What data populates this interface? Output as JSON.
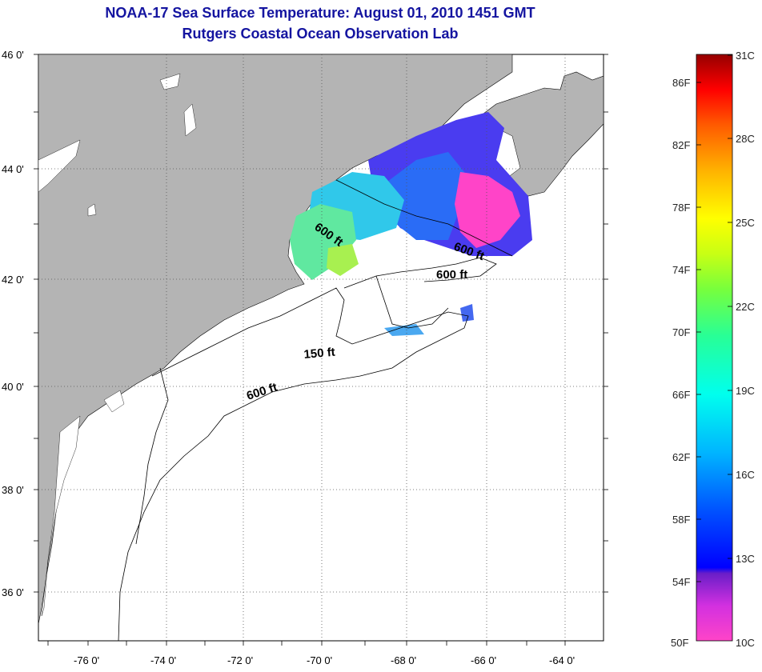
{
  "title": "NOAA-17 Sea Surface Temperature:  August 01, 2010 1451 GMT",
  "subtitle": "Rutgers Coastal Ocean Observation Lab",
  "axes": {
    "lon_ticks": [
      "-76 0'",
      "-74 0'",
      "-72 0'",
      "-70 0'",
      "-68 0'",
      "-66 0'",
      "-64 0'"
    ],
    "lat_ticks": [
      "46 0'",
      "44 0'",
      "42 0'",
      "40 0'",
      "38 0'",
      "36 0'"
    ]
  },
  "contours": [
    {
      "label": "600 ft"
    },
    {
      "label": "600 ft"
    },
    {
      "label": "600 ft"
    },
    {
      "label": "150 ft"
    },
    {
      "label": "600 ft"
    }
  ],
  "colorbar": {
    "fahrenheit": [
      "86F",
      "82F",
      "78F",
      "74F",
      "70F",
      "66F",
      "62F",
      "58F",
      "54F",
      "50F"
    ],
    "celsius": [
      "31C",
      "28C",
      "25C",
      "22C",
      "19C",
      "16C",
      "13C",
      "10C"
    ]
  },
  "colors": {
    "land": "#b4b4b4",
    "water": "#ffffff",
    "title": "#1414a0",
    "grid": "#555555"
  }
}
